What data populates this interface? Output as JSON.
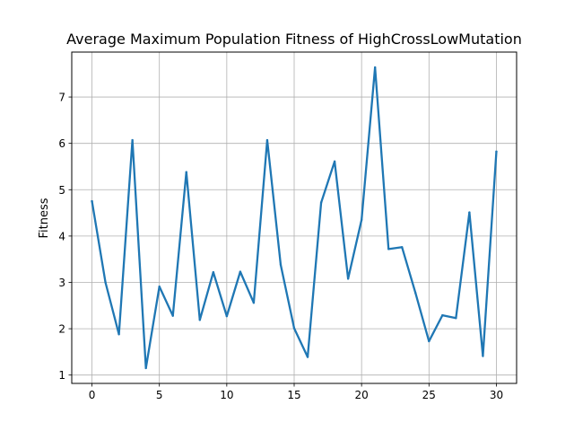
{
  "chart_data": {
    "type": "line",
    "title": "Average Maximum Population Fitness of HighCrossLowMutation",
    "xlabel": "",
    "ylabel": "Fitness",
    "xlim": [
      -1.5,
      31.5
    ],
    "ylim": [
      0.82,
      7.97
    ],
    "xticks": [
      0,
      5,
      10,
      15,
      20,
      25,
      30
    ],
    "yticks": [
      1,
      2,
      3,
      4,
      5,
      6,
      7
    ],
    "grid": true,
    "line_color": "#1f77b4",
    "series": [
      {
        "x": [
          0,
          1,
          2,
          3,
          4,
          5,
          6,
          7,
          8,
          9,
          10,
          11,
          12,
          13,
          14,
          15,
          16,
          17,
          18,
          19,
          20,
          21,
          22,
          23,
          24,
          25,
          26,
          27,
          28,
          29,
          30
        ],
        "values": [
          4.75,
          3.0,
          1.88,
          6.07,
          1.15,
          2.91,
          2.28,
          5.38,
          2.19,
          3.22,
          2.27,
          3.23,
          2.56,
          6.07,
          3.38,
          2.01,
          1.39,
          4.72,
          5.61,
          3.08,
          4.35,
          7.64,
          3.72,
          3.76,
          2.77,
          1.73,
          2.29,
          2.23,
          4.51,
          1.41,
          5.82
        ]
      }
    ]
  }
}
